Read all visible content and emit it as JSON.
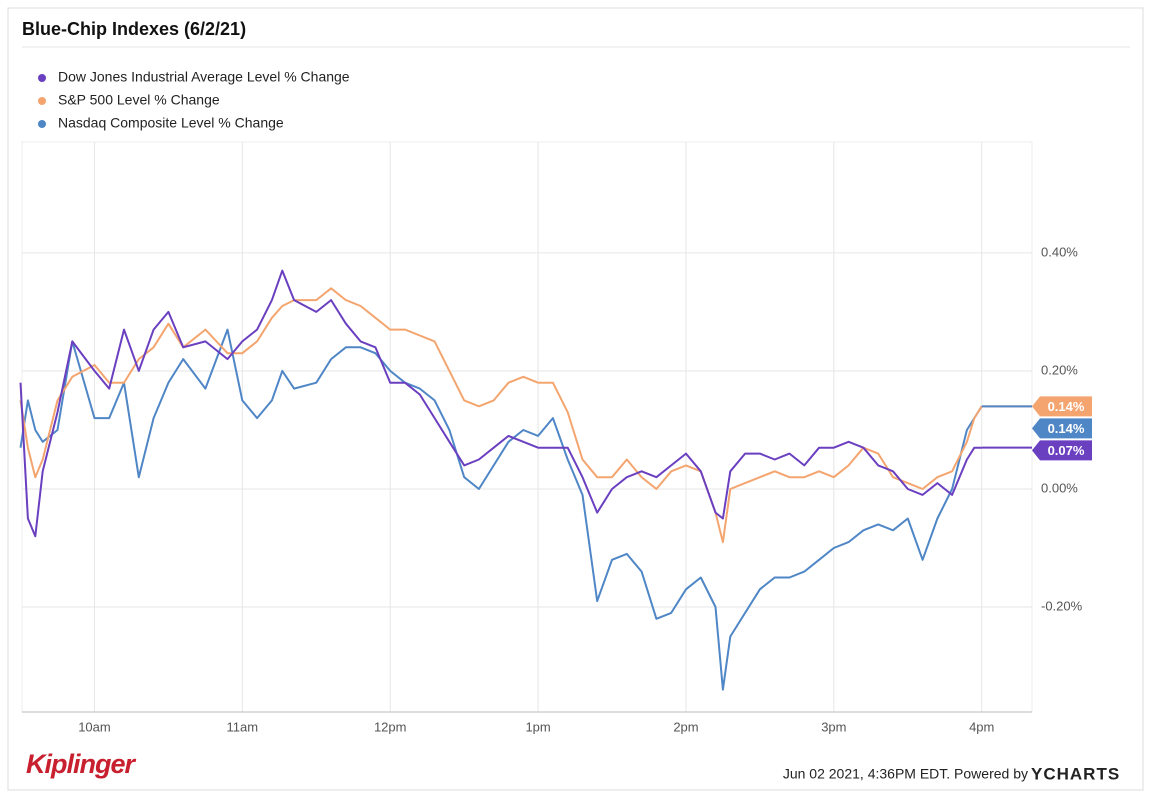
{
  "chart_data": {
    "type": "line",
    "title": "Blue-Chip Indexes (6/2/21)",
    "source": "Kiplinger",
    "timestamp": "Jun 02 2021, 4:36PM EDT. Powered by",
    "powered_by": "YCHARTS",
    "legend": "top-left",
    "grid": true,
    "x": [
      9.5,
      9.55,
      9.6,
      9.65,
      9.75,
      9.85,
      10,
      10.1,
      10.2,
      10.3,
      10.4,
      10.5,
      10.6,
      10.75,
      10.9,
      11,
      11.1,
      11.2,
      11.27,
      11.35,
      11.5,
      11.6,
      11.7,
      11.8,
      11.9,
      12,
      12.1,
      12.2,
      12.3,
      12.4,
      12.5,
      12.6,
      12.7,
      12.8,
      12.9,
      13,
      13.1,
      13.2,
      13.3,
      13.4,
      13.5,
      13.6,
      13.7,
      13.8,
      13.9,
      14,
      14.1,
      14.2,
      14.25,
      14.3,
      14.4,
      14.5,
      14.6,
      14.7,
      14.8,
      14.9,
      15,
      15.1,
      15.2,
      15.3,
      15.4,
      15.5,
      15.6,
      15.7,
      15.8,
      15.9,
      15.95,
      16
    ],
    "xlim": [
      9.51,
      16.34
    ],
    "xticks": [
      {
        "value": 10,
        "label": "10am"
      },
      {
        "value": 11,
        "label": "11am"
      },
      {
        "value": 12,
        "label": "12pm"
      },
      {
        "value": 13,
        "label": "1pm"
      },
      {
        "value": 14,
        "label": "2pm"
      },
      {
        "value": 15,
        "label": "3pm"
      },
      {
        "value": 16,
        "label": "4pm"
      }
    ],
    "ylim": [
      -0.378,
      0.588
    ],
    "yticks": [
      {
        "value": -0.2,
        "label": "-0.20%"
      },
      {
        "value": 0,
        "label": "0.00%"
      },
      {
        "value": 0.2,
        "label": "0.20%"
      },
      {
        "value": 0.4,
        "label": "0.40%"
      }
    ],
    "series": [
      {
        "name": "Dow Jones Industrial Average Level % Change",
        "color": "#6a3fc0",
        "end_label": "0.07%",
        "values": [
          0.18,
          -0.05,
          -0.08,
          0.03,
          0.13,
          0.25,
          0.2,
          0.17,
          0.27,
          0.2,
          0.27,
          0.3,
          0.24,
          0.25,
          0.22,
          0.25,
          0.27,
          0.32,
          0.37,
          0.32,
          0.3,
          0.32,
          0.28,
          0.25,
          0.24,
          0.18,
          0.18,
          0.16,
          0.12,
          0.08,
          0.04,
          0.05,
          0.07,
          0.09,
          0.08,
          0.07,
          0.07,
          0.07,
          0.02,
          -0.04,
          0,
          0.02,
          0.03,
          0.02,
          0.04,
          0.06,
          0.03,
          -0.04,
          -0.05,
          0.03,
          0.06,
          0.06,
          0.05,
          0.06,
          0.04,
          0.07,
          0.07,
          0.08,
          0.07,
          0.04,
          0.03,
          0,
          -0.01,
          0.01,
          -0.01,
          0.05,
          0.07,
          0.07
        ]
      },
      {
        "name": "S&P 500 Level % Change",
        "color": "#f4a56f",
        "end_label": "0.14%",
        "values": [
          0.15,
          0.07,
          0.02,
          0.05,
          0.15,
          0.19,
          0.21,
          0.18,
          0.18,
          0.22,
          0.24,
          0.28,
          0.24,
          0.27,
          0.23,
          0.23,
          0.25,
          0.29,
          0.31,
          0.32,
          0.32,
          0.34,
          0.32,
          0.31,
          0.29,
          0.27,
          0.27,
          0.26,
          0.25,
          0.2,
          0.15,
          0.14,
          0.15,
          0.18,
          0.19,
          0.18,
          0.18,
          0.13,
          0.05,
          0.02,
          0.02,
          0.05,
          0.02,
          0,
          0.03,
          0.04,
          0.03,
          -0.04,
          -0.09,
          0,
          0.01,
          0.02,
          0.03,
          0.02,
          0.02,
          0.03,
          0.02,
          0.04,
          0.07,
          0.06,
          0.02,
          0.01,
          0,
          0.02,
          0.03,
          0.08,
          0.12,
          0.14
        ]
      },
      {
        "name": "Nasdaq Composite Level % Change",
        "color": "#4f86c6",
        "end_label": "0.14%",
        "values": [
          0.07,
          0.15,
          0.1,
          0.08,
          0.1,
          0.25,
          0.12,
          0.12,
          0.18,
          0.02,
          0.12,
          0.18,
          0.22,
          0.17,
          0.27,
          0.15,
          0.12,
          0.15,
          0.2,
          0.17,
          0.18,
          0.22,
          0.24,
          0.24,
          0.23,
          0.2,
          0.18,
          0.17,
          0.15,
          0.1,
          0.02,
          0,
          0.04,
          0.08,
          0.1,
          0.09,
          0.12,
          0.05,
          -0.01,
          -0.19,
          -0.12,
          -0.11,
          -0.14,
          -0.22,
          -0.21,
          -0.17,
          -0.15,
          -0.2,
          -0.34,
          -0.25,
          -0.21,
          -0.17,
          -0.15,
          -0.15,
          -0.14,
          -0.12,
          -0.1,
          -0.09,
          -0.07,
          -0.06,
          -0.07,
          -0.05,
          -0.12,
          -0.05,
          0,
          0.1,
          0.12,
          0.14
        ]
      }
    ]
  }
}
